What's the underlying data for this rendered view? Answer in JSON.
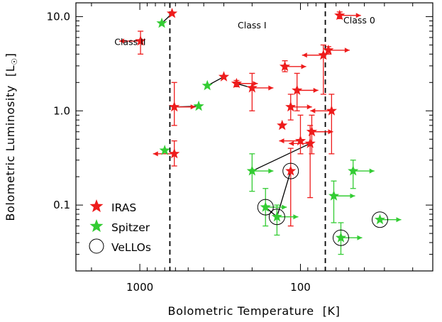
{
  "chart_data": {
    "type": "scatter",
    "xlabel": "Bolometric Temperature",
    "xunit": "[K]",
    "ylabel": "Bolometric Luminosity",
    "yunit": "[L",
    "yunit_suffix": "]",
    "x_scale": "log",
    "y_scale": "log",
    "x_reversed": true,
    "xlim": [
      2500,
      15
    ],
    "ylim": [
      0.02,
      14
    ],
    "x_ticks": [
      {
        "value": 1000,
        "label": "1000"
      },
      {
        "value": 100,
        "label": "100"
      }
    ],
    "y_ticks": [
      {
        "value": 10,
        "label": "10.0"
      },
      {
        "value": 1,
        "label": "1.0"
      },
      {
        "value": 0.1,
        "label": "0.1"
      }
    ],
    "class_boundaries": [
      650,
      70
    ],
    "region_labels": [
      {
        "text": "Class II",
        "x": 1150,
        "y": 5.0
      },
      {
        "text": "Class I",
        "x": 200,
        "y": 7.5
      },
      {
        "text": "Class 0",
        "x": 43,
        "y": 8.5
      }
    ],
    "colors": {
      "iras": "#ee1c1c",
      "spitzer": "#33cc33",
      "vello": "#000000"
    },
    "legend": {
      "placement": "bottom-left",
      "entries": [
        {
          "label": "IRAS",
          "marker": "star",
          "color": "#ee1c1c"
        },
        {
          "label": "Spitzer",
          "marker": "star",
          "color": "#33cc33"
        },
        {
          "label": "VeLLOs",
          "marker": "circle",
          "color": "#000000"
        }
      ]
    },
    "series": [
      {
        "name": "IRAS",
        "marker": "star",
        "points": [
          {
            "x": 990,
            "y": 5.5,
            "yerr": [
              4.0,
              7.0
            ],
            "arrow": "left"
          },
          {
            "x": 630,
            "y": 10.8
          },
          {
            "x": 610,
            "y": 1.1,
            "yerr": [
              0.7,
              2.0
            ],
            "arrow": "right"
          },
          {
            "x": 610,
            "y": 0.35,
            "yerr": [
              0.26,
              0.48
            ],
            "arrow": "left"
          },
          {
            "x": 300,
            "y": 2.3
          },
          {
            "x": 250,
            "y": 1.95,
            "yerr": [
              1.8,
              2.1
            ],
            "arrow": "right"
          },
          {
            "x": 200,
            "y": 1.75,
            "yerr": [
              1.0,
              2.5
            ],
            "arrow": "right"
          },
          {
            "x": 125,
            "y": 2.95,
            "yerr": [
              2.6,
              3.4
            ],
            "arrow": "right"
          },
          {
            "x": 115,
            "y": 1.1,
            "yerr": [
              0.8,
              1.5
            ],
            "arrow": "right"
          },
          {
            "x": 130,
            "y": 0.7
          },
          {
            "x": 105,
            "y": 1.65,
            "yerr": [
              1.0,
              2.5
            ],
            "arrow": "right"
          },
          {
            "x": 100,
            "y": 0.48,
            "yerr": [
              0.35,
              0.9
            ],
            "arrow": "left"
          },
          {
            "x": 87,
            "y": 0.45,
            "yerr": [
              0.12,
              0.7
            ],
            "arrow": "left"
          },
          {
            "x": 85,
            "y": 0.6,
            "yerr": [
              0.35,
              0.9
            ],
            "arrow": "right"
          },
          {
            "x": 72,
            "y": 3.9,
            "yerr": [
              1.5,
              5.0
            ],
            "arrow": "left"
          },
          {
            "x": 67,
            "y": 4.4,
            "yerr": [
              4.0,
              4.8
            ],
            "arrow": "right"
          },
          {
            "x": 64,
            "y": 1.0,
            "yerr": [
              0.35,
              1.5
            ],
            "arrow": "left"
          },
          {
            "x": 57,
            "y": 10.3,
            "yerr": [
              9.5,
              11.2
            ],
            "arrow": "right"
          },
          {
            "x": 115,
            "y": 0.23,
            "yerr": [
              0.06,
              0.4
            ],
            "vello": true
          }
        ]
      },
      {
        "name": "Spitzer",
        "marker": "star",
        "points": [
          {
            "x": 730,
            "y": 8.5
          },
          {
            "x": 700,
            "y": 0.38
          },
          {
            "x": 430,
            "y": 1.12
          },
          {
            "x": 380,
            "y": 1.85
          },
          {
            "x": 200,
            "y": 0.23,
            "yerr": [
              0.14,
              0.35
            ],
            "arrow": "right"
          },
          {
            "x": 165,
            "y": 0.095,
            "yerr": [
              0.06,
              0.15
            ],
            "arrow": "right",
            "vello": true
          },
          {
            "x": 140,
            "y": 0.075,
            "yerr": [
              0.048,
              0.1
            ],
            "arrow": "right",
            "vello": true
          },
          {
            "x": 62,
            "y": 0.125,
            "yerr": [
              0.065,
              0.18
            ],
            "arrow": "right"
          },
          {
            "x": 47,
            "y": 0.23,
            "yerr": [
              0.15,
              0.3
            ],
            "arrow": "right"
          },
          {
            "x": 56,
            "y": 0.045,
            "yerr": [
              0.03,
              0.065
            ],
            "arrow": "right",
            "vello": true
          },
          {
            "x": 32,
            "y": 0.07,
            "arrow": "right",
            "vello": true
          }
        ]
      }
    ],
    "connections": [
      {
        "from": [
          630,
          10.8
        ],
        "to": [
          730,
          8.5
        ]
      },
      {
        "from": [
          430,
          1.12
        ],
        "to": [
          610,
          1.1
        ]
      },
      {
        "from": [
          380,
          1.85
        ],
        "to": [
          300,
          2.3
        ]
      },
      {
        "from": [
          250,
          1.95
        ],
        "to": [
          200,
          1.75
        ]
      },
      {
        "from": [
          200,
          0.23
        ],
        "to": [
          87,
          0.45
        ]
      },
      {
        "from": [
          165,
          0.095
        ],
        "to": [
          140,
          0.075
        ]
      },
      {
        "from": [
          140,
          0.075
        ],
        "to": [
          115,
          0.23
        ]
      }
    ]
  }
}
